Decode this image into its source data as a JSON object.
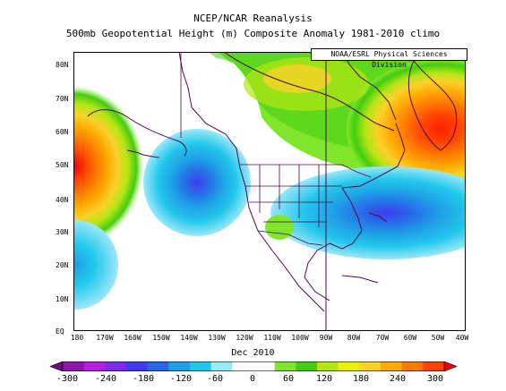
{
  "header": {
    "title": "NCEP/NCAR Reanalysis",
    "subtitle": "500mb Geopotential Height (m) Composite Anomaly 1981-2010 climo",
    "credit": "NOAA/ESRL Physical Sciences Division"
  },
  "map": {
    "region": "North Pacific / North America",
    "lat_labels": [
      "80N",
      "70N",
      "60N",
      "50N",
      "40N",
      "30N",
      "20N",
      "10N",
      "EQ"
    ],
    "lon_labels": [
      "180",
      "170W",
      "160W",
      "150W",
      "140W",
      "130W",
      "120W",
      "110W",
      "100W",
      "90W",
      "80W",
      "70W",
      "60W",
      "50W",
      "40W"
    ],
    "date_label": "Dec 2010",
    "anomaly_centers": [
      {
        "name": "ridge-pacific-west",
        "sign": "positive",
        "peak": 300
      },
      {
        "name": "trough-gulf-of-alaska",
        "sign": "negative",
        "peak": -120
      },
      {
        "name": "ridge-greenland",
        "sign": "positive",
        "peak": 240
      },
      {
        "name": "trough-western-atlantic",
        "sign": "negative",
        "peak": -120
      },
      {
        "name": "ridge-arctic-canada",
        "sign": "positive",
        "peak": 120
      }
    ]
  },
  "colorbar": {
    "ticks": [
      "-300",
      "-240",
      "-180",
      "-120",
      "-60",
      "0",
      "60",
      "120",
      "180",
      "240",
      "300"
    ],
    "colors": [
      "#6e0a78",
      "#8e16a8",
      "#b41ee0",
      "#7c2ce8",
      "#3f3cf0",
      "#2a64e8",
      "#1e9fe6",
      "#22c7ec",
      "#9be8f8",
      "#ffffff",
      "#ffffff",
      "#7fe62c",
      "#44cc10",
      "#b4e614",
      "#eaf000",
      "#fad228",
      "#ffaa00",
      "#ff7a00",
      "#ff4400",
      "#e8000c"
    ]
  }
}
